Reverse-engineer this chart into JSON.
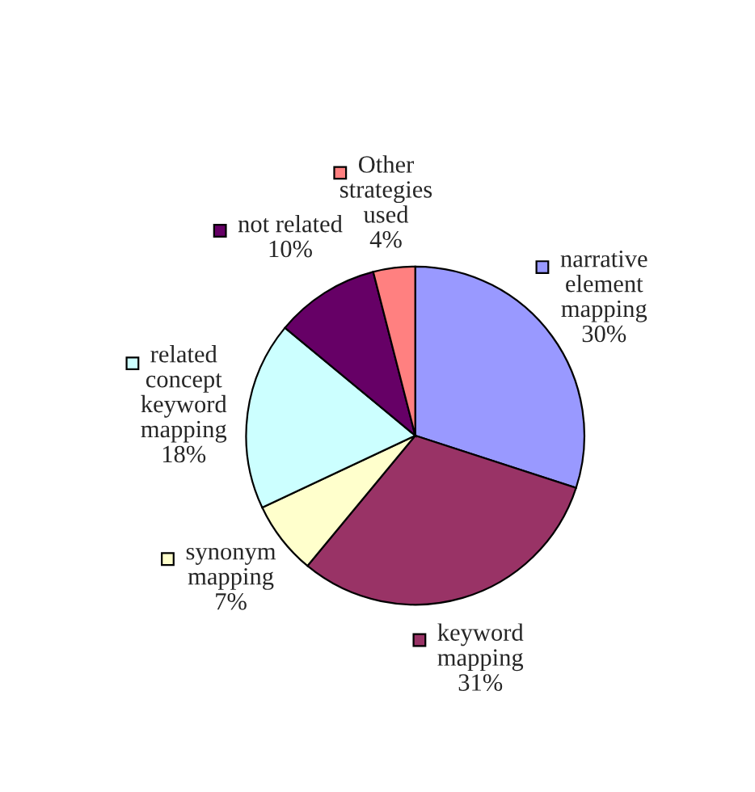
{
  "chart_data": {
    "type": "pie",
    "categories": [
      "narrative element mapping",
      "keyword mapping",
      "synonym mapping",
      "related concept keyword mapping",
      "not related",
      "Other strategies used"
    ],
    "values": [
      30,
      31,
      7,
      18,
      10,
      4
    ],
    "colors": [
      "#9999ff",
      "#993366",
      "#ffffcc",
      "#ccffff",
      "#660066",
      "#ff8080"
    ],
    "value_labels": [
      "30%",
      "31%",
      "7%",
      "18%",
      "10%",
      "4%"
    ],
    "legend": "top left"
  }
}
